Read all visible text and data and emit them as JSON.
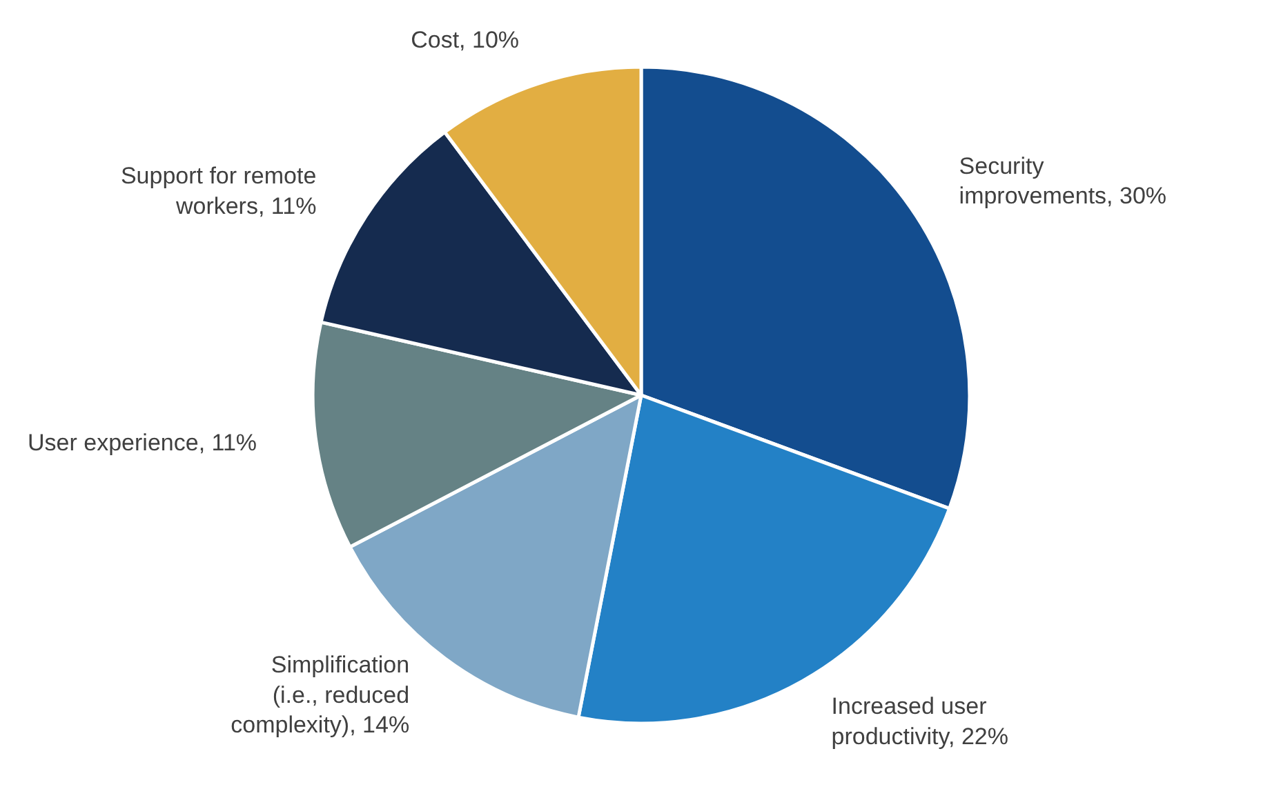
{
  "chart_data": {
    "type": "pie",
    "categories": [
      "Security improvements, 30%",
      "Increased user productivity, 22%",
      "Simplification (i.e., reduced complexity), 14%",
      "User experience, 11%",
      "Support for remote workers, 11%",
      "Cost, 10%"
    ],
    "values": [
      30,
      22,
      14,
      11,
      11,
      10
    ],
    "colors": [
      "#134d8f",
      "#2381c6",
      "#7fa7c6",
      "#658285",
      "#152b4f",
      "#e2ae42"
    ]
  }
}
